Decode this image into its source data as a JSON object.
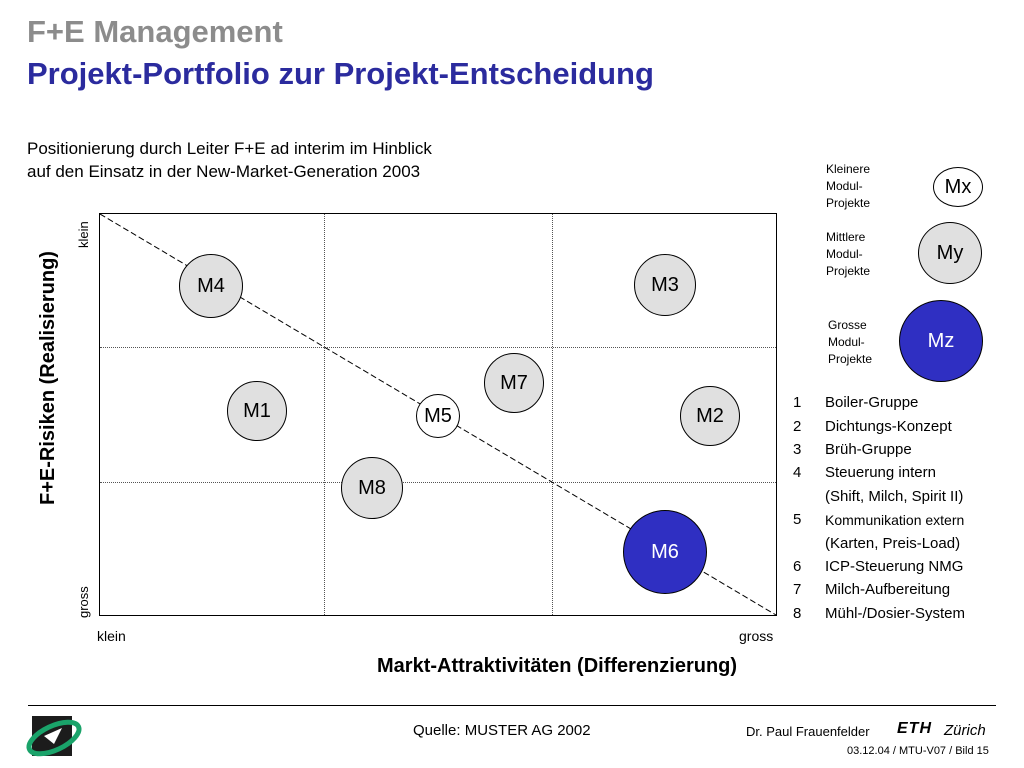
{
  "header": {
    "title": "F+E Management",
    "subtitle": "Projekt-Portfolio zur Projekt-Entscheidung",
    "intro_line1": "Positionierung durch Leiter F+E ad interim im Hinblick",
    "intro_line2": "auf den Einsatz in der New-Market-Generation 2003"
  },
  "axes": {
    "y_label": "F+E-Risiken (Realisierung)",
    "y_top": "klein",
    "y_bottom": "gross",
    "x_label": "Markt-Attraktivitäten (Differenzierung)",
    "x_left": "klein",
    "x_right": "gross"
  },
  "bubbles": [
    {
      "label": "M4",
      "size": "medium"
    },
    {
      "label": "M3",
      "size": "medium"
    },
    {
      "label": "M7",
      "size": "medium"
    },
    {
      "label": "M1",
      "size": "medium"
    },
    {
      "label": "M5",
      "size": "small"
    },
    {
      "label": "M2",
      "size": "medium"
    },
    {
      "label": "M8",
      "size": "medium"
    },
    {
      "label": "M6",
      "size": "large"
    }
  ],
  "legend": {
    "small_text": "Kleinere\nModul-\nProjekte",
    "small_label": "Mx",
    "medium_text": "Mittlere\nModul-\nProjekte",
    "medium_label": "My",
    "large_text": "Grosse\nModul-\nProjekte",
    "large_label": "Mz",
    "large_color": "#2f2fc2"
  },
  "projects": [
    {
      "num": "1",
      "name": "Boiler-Gruppe"
    },
    {
      "num": "2",
      "name": "Dichtungs-Konzept"
    },
    {
      "num": "3",
      "name": "Brüh-Gruppe"
    },
    {
      "num": "4",
      "name": "Steuerung intern"
    },
    {
      "num": "",
      "name": "(Shift, Milch, Spirit II)"
    },
    {
      "num": "5",
      "name": "Kommunikation extern"
    },
    {
      "num": "",
      "name": "(Karten, Preis-Load)"
    },
    {
      "num": "6",
      "name": "ICP-Steuerung NMG"
    },
    {
      "num": "7",
      "name": "Milch-Aufbereitung"
    },
    {
      "num": "8",
      "name": "Mühl-/Dosier-System"
    }
  ],
  "footer": {
    "source": "Quelle: MUSTER AG 2002",
    "author": "Dr. Paul Frauenfelder",
    "eth": "ETH",
    "zurich": "Zürich",
    "page": "03.12.04 / MTU-V07 / Bild 15"
  }
}
